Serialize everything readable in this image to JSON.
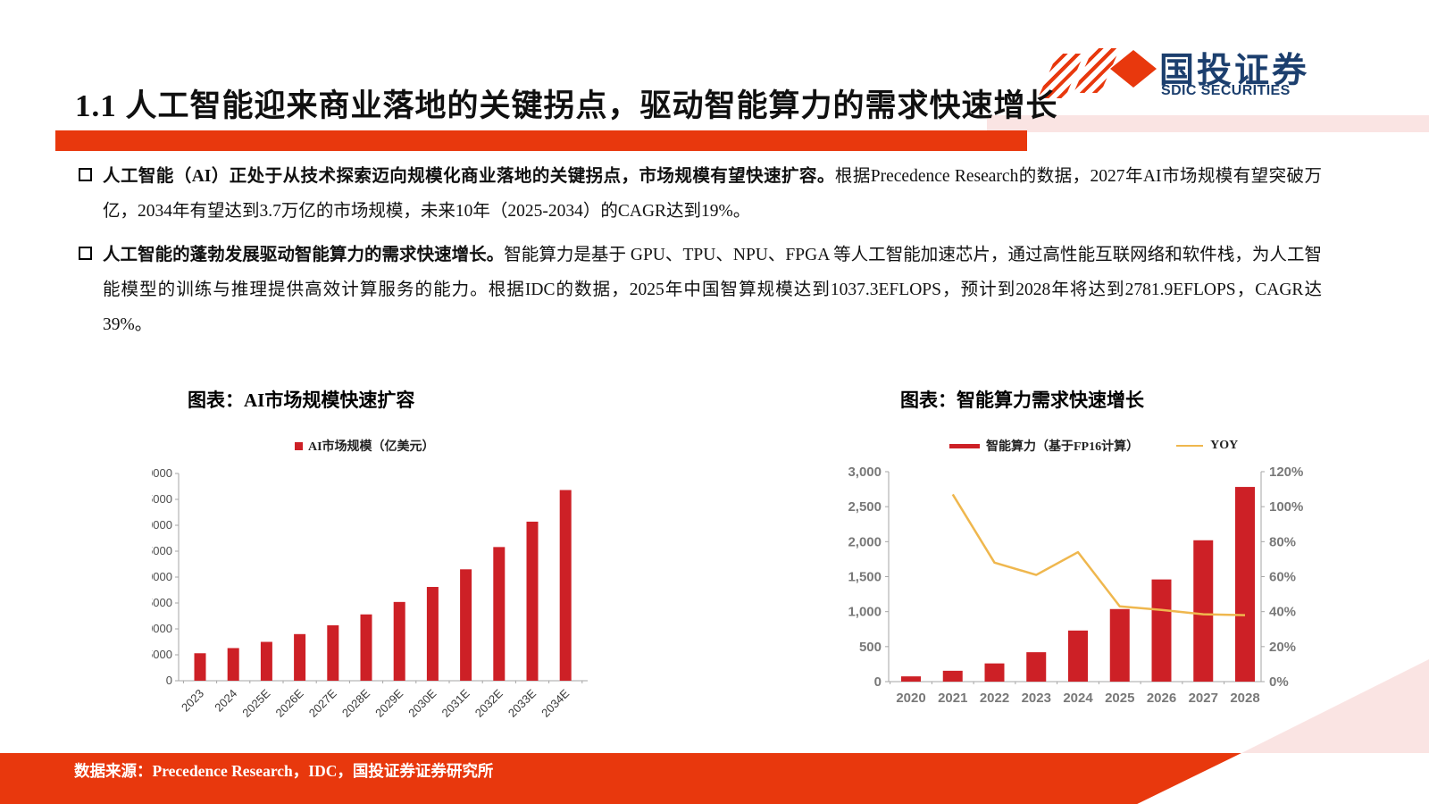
{
  "header": {
    "title": "1.1 人工智能迎来商业落地的关键拐点，驱动智能算力的需求快速增长"
  },
  "logo": {
    "name_cn": "国投证券",
    "name_en": "SDIC SECURITIES"
  },
  "bullets": [
    {
      "bold": "人工智能（AI）正处于从技术探索迈向规模化商业落地的关键拐点，市场规模有望快速扩容。",
      "text": "根据Precedence Research的数据，2027年AI市场规模有望突破万亿，2034年有望达到3.7万亿的市场规模，未来10年（2025-2034）的CAGR达到19%。"
    },
    {
      "bold": "人工智能的蓬勃发展驱动智能算力的需求快速增长。",
      "text": "智能算力是基于 GPU、TPU、NPU、FPGA 等人工智能加速芯片，通过高性能互联网络和软件栈，为人工智能模型的训练与推理提供高效计算服务的能力。根据IDC的数据，2025年中国智算规模达到1037.3EFLOPS，预计到2028年将达到2781.9EFLOPS，CAGR达39%。"
    }
  ],
  "footer": {
    "source": "数据来源：Precedence Research，IDC，国投证券证券研究所"
  },
  "colors": {
    "accent_red": "#E8380D",
    "bar_red": "#CD2026",
    "line_yellow": "#EFB74E",
    "pink": "#FAE4E3",
    "navy": "#1C3F6E",
    "axis_gray": "#A6A6A6",
    "tick_label_dark": "#4d4d4d",
    "tick_label_gray": "#787878"
  },
  "chart_data": [
    {
      "type": "bar",
      "title": "图表：AI市场规模快速扩容",
      "legend": [
        "AI市场规模（亿美元）"
      ],
      "categories": [
        "2023",
        "2024",
        "2025E",
        "2026E",
        "2027E",
        "2028E",
        "2029E",
        "2030E",
        "2031E",
        "2032E",
        "2033E",
        "2034E"
      ],
      "values": [
        5300,
        6300,
        7500,
        9000,
        10700,
        12800,
        15200,
        18100,
        21500,
        25800,
        30700,
        36800
      ],
      "ylabel": "亿美元",
      "ylim": [
        0,
        40000
      ],
      "ytick_step": 5000,
      "grid": false,
      "legend_position": "top"
    },
    {
      "type": "bar+line",
      "title": "图表：智能算力需求快速增长",
      "categories": [
        "2020",
        "2021",
        "2022",
        "2023",
        "2024",
        "2025",
        "2026",
        "2027",
        "2028"
      ],
      "series": [
        {
          "name": "智能算力（基于FP16计算）",
          "type": "bar",
          "axis": "left",
          "values": [
            75,
            155,
            260,
            420,
            730,
            1037,
            1460,
            2020,
            2782
          ]
        },
        {
          "name": "YOY",
          "type": "line",
          "axis": "right",
          "unit": "%",
          "values": [
            null,
            107,
            68,
            61,
            74,
            43,
            41,
            38.5,
            38
          ]
        }
      ],
      "left_ylim": [
        0,
        3000
      ],
      "left_ytick_step": 500,
      "right_ylim": [
        0,
        120
      ],
      "right_ytick_step": 20,
      "grid": false,
      "legend_position": "top"
    }
  ]
}
